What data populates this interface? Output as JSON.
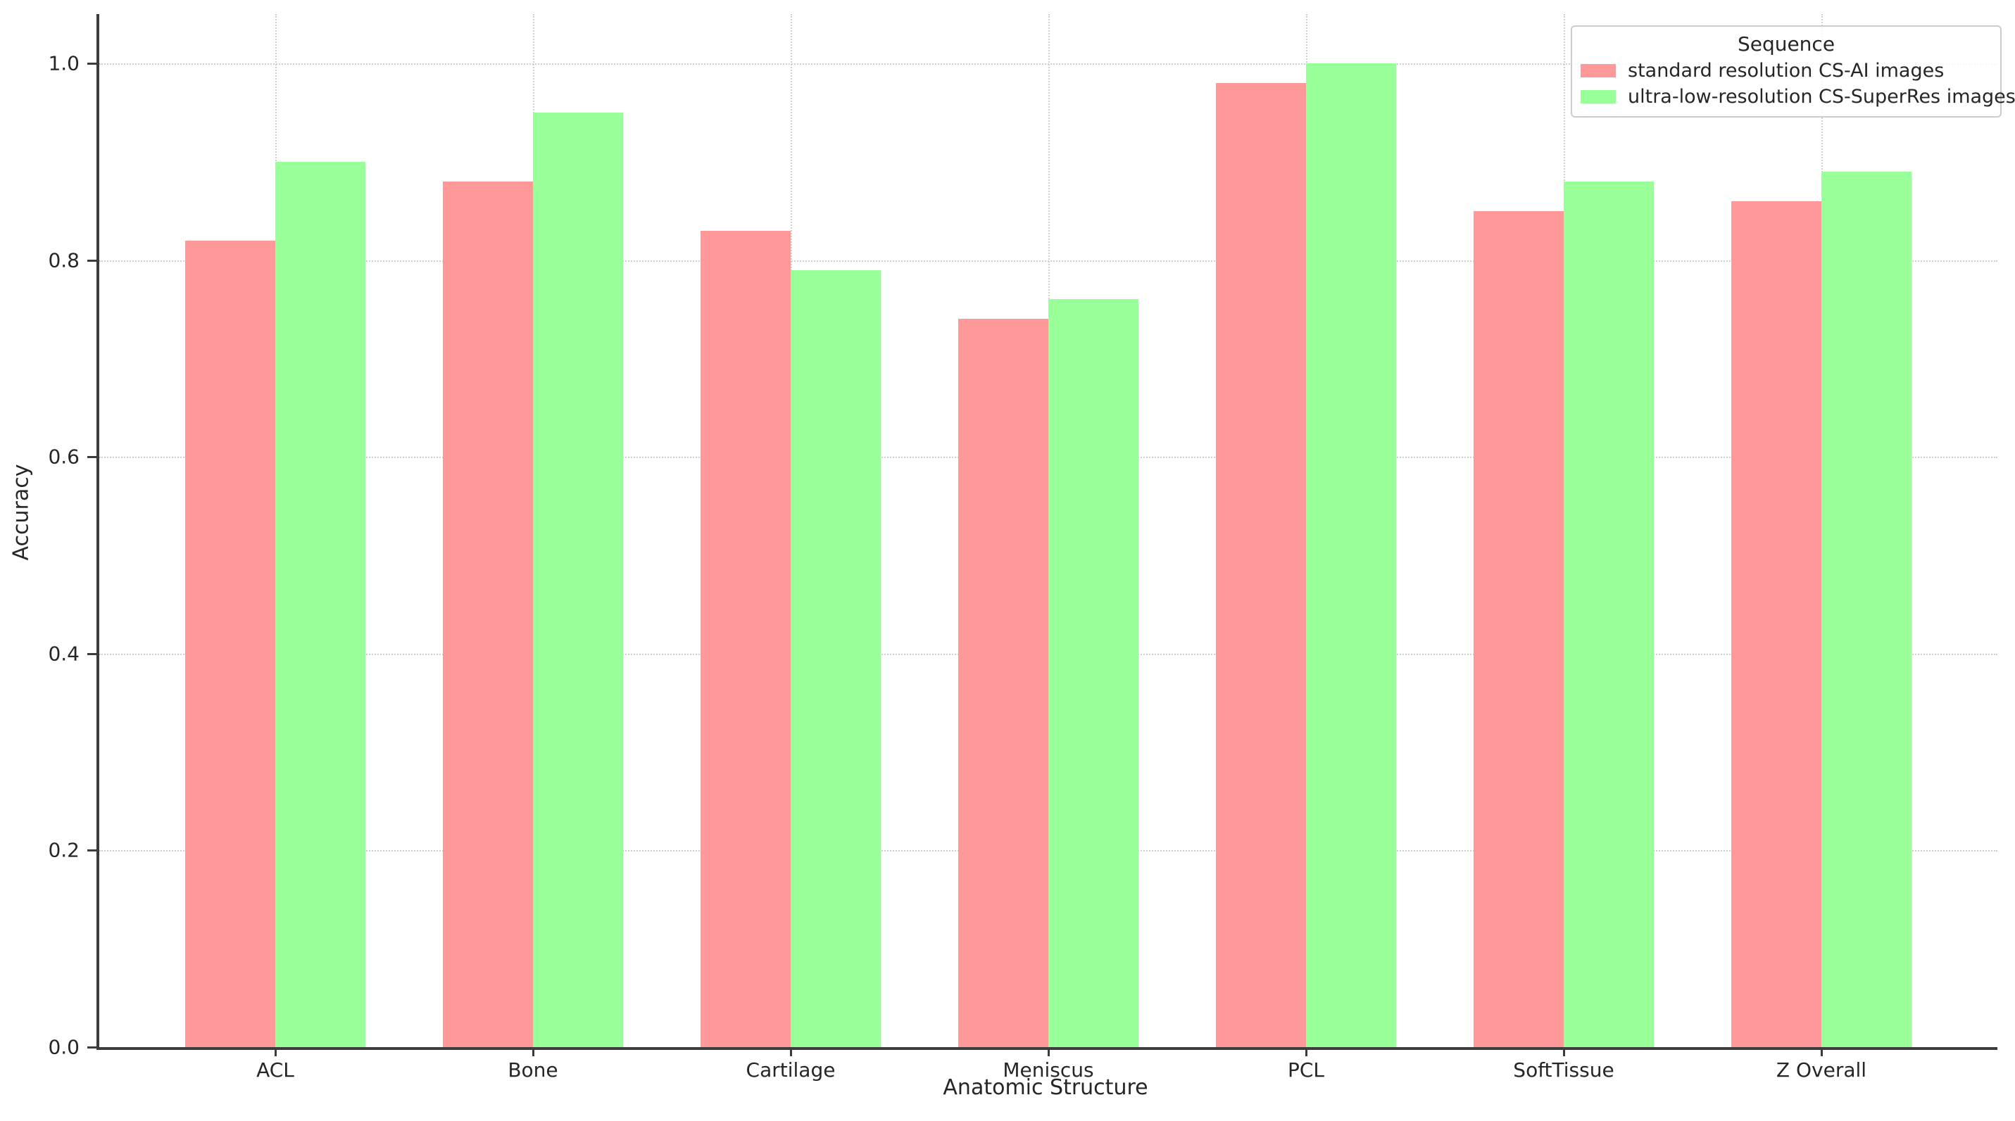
{
  "chart_data": {
    "type": "bar",
    "title": "",
    "xlabel": "Anatomic Structure",
    "ylabel": "Accuracy",
    "categories": [
      "ACL",
      "Bone",
      "Cartilage",
      "Meniscus",
      "PCL",
      "SoftTissue",
      "Z Overall"
    ],
    "series": [
      {
        "name": "standard resolution CS-AI images",
        "color": "#ff9999",
        "values": [
          0.82,
          0.88,
          0.83,
          0.74,
          0.98,
          0.85,
          0.86
        ]
      },
      {
        "name": "ultra-low-resolution CS-SuperRes images",
        "color": "#99ff99",
        "values": [
          0.9,
          0.95,
          0.79,
          0.76,
          1.0,
          0.88,
          0.89
        ]
      }
    ],
    "legend": {
      "title": "Sequence",
      "position": "upper right"
    },
    "y_ticks": [
      "0.0",
      "0.2",
      "0.4",
      "0.6",
      "0.8",
      "1.0"
    ],
    "y_tick_values": [
      0.0,
      0.2,
      0.4,
      0.6,
      0.8,
      1.0
    ],
    "ylim": [
      0,
      1.05
    ],
    "grid": true,
    "grid_style": "dotted",
    "background": "#ffffff",
    "text_color": "#262626"
  }
}
